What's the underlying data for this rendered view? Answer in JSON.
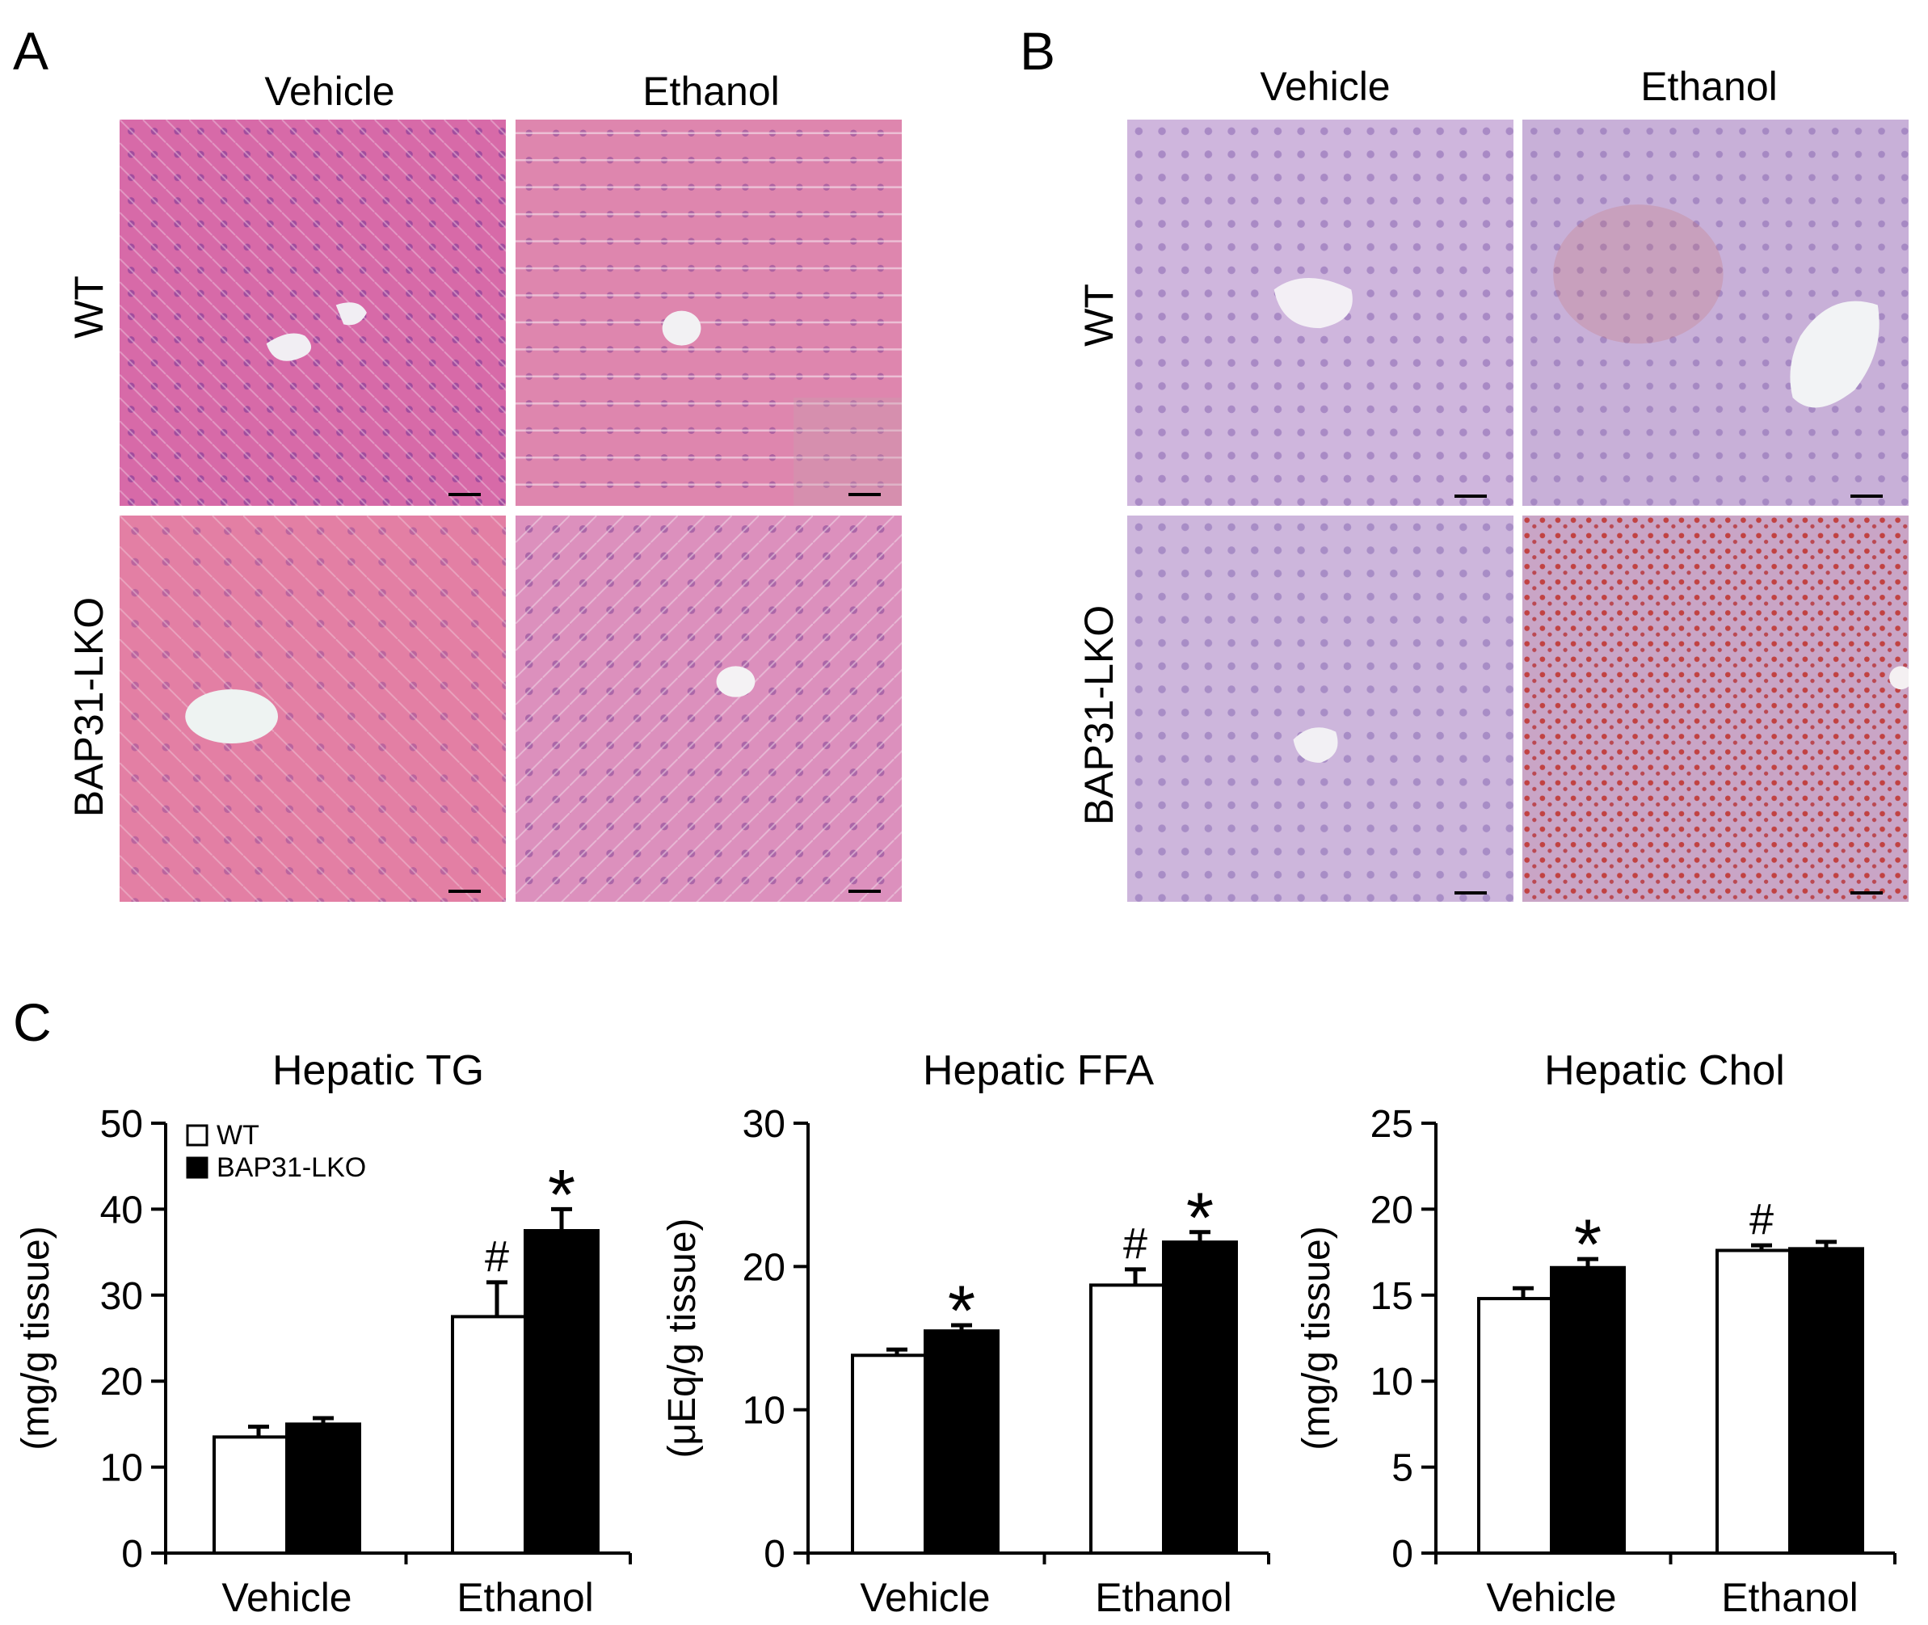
{
  "panelA": {
    "letter": "A",
    "columns": [
      "Vehicle",
      "Ethanol"
    ],
    "rows": [
      "WT",
      "BAP31-LKO"
    ]
  },
  "panelB": {
    "letter": "B",
    "columns": [
      "Vehicle",
      "Ethanol"
    ],
    "rows": [
      "WT",
      "BAP31-LKO"
    ]
  },
  "panelC": {
    "letter": "C"
  },
  "colors": {
    "he_stain": "#d96aa8",
    "he_stain_alt": "#e37fa4",
    "oil_red_bg": "#c9a7d6",
    "lipid_droplet": "#c0302a",
    "bar_wt": "#ffffff",
    "bar_lko": "#000000"
  },
  "chart_data": [
    {
      "type": "bar",
      "title": "Hepatic TG",
      "ylabel": "(mg/g tissue)",
      "xlabel": "",
      "categories": [
        "Vehicle",
        "Ethanol"
      ],
      "ylim": [
        0,
        50
      ],
      "yticks": [
        "0",
        "10",
        "20",
        "30",
        "40",
        "50"
      ],
      "series": [
        {
          "name": "WT",
          "values": [
            13.5,
            27.5
          ],
          "errors": [
            1.2,
            4.0
          ],
          "marks": [
            "",
            "#"
          ]
        },
        {
          "name": "BAP31-LKO",
          "values": [
            15.0,
            37.5
          ],
          "errors": [
            0.7,
            2.5
          ],
          "marks": [
            "",
            "*"
          ]
        }
      ],
      "legend": "top-left"
    },
    {
      "type": "bar",
      "title": "Hepatic FFA",
      "ylabel": "(μEq/g tissue)",
      "xlabel": "",
      "categories": [
        "Vehicle",
        "Ethanol"
      ],
      "ylim": [
        0,
        30
      ],
      "yticks": [
        "0",
        "10",
        "20",
        "30"
      ],
      "series": [
        {
          "values": [
            13.8,
            18.7
          ],
          "errors": [
            0.4,
            1.1
          ],
          "marks": [
            "",
            "#"
          ]
        },
        {
          "values": [
            15.5,
            21.7
          ],
          "errors": [
            0.4,
            0.7
          ],
          "marks": [
            "*",
            "*"
          ]
        }
      ]
    },
    {
      "type": "bar",
      "title": "Hepatic Chol",
      "ylabel": "(mg/g tissue)",
      "xlabel": "",
      "categories": [
        "Vehicle",
        "Ethanol"
      ],
      "ylim": [
        0,
        25
      ],
      "yticks": [
        "0",
        "5",
        "10",
        "15",
        "20",
        "25"
      ],
      "series": [
        {
          "values": [
            14.8,
            17.6
          ],
          "errors": [
            0.6,
            0.3
          ],
          "marks": [
            "",
            "#"
          ]
        },
        {
          "values": [
            16.6,
            17.7
          ],
          "errors": [
            0.5,
            0.4
          ],
          "marks": [
            "*",
            ""
          ]
        }
      ]
    }
  ]
}
